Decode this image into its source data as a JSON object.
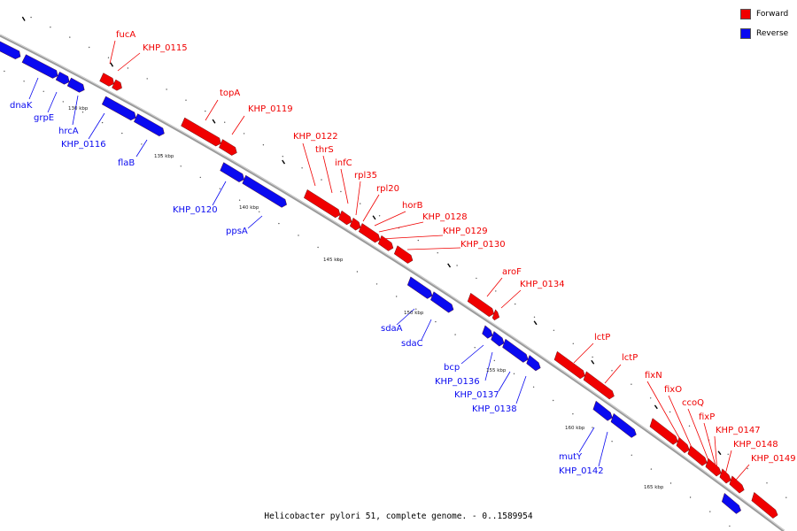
{
  "legend": {
    "forward": {
      "label": "Forward",
      "color": "#f00000"
    },
    "reverse": {
      "label": "Reverse",
      "color": "#0a0af0"
    }
  },
  "caption": "Helicobacter pylori 51, complete genome. - 0..1589954",
  "backbone_color": "#9a9a9a",
  "ticks": [
    "130 kbp",
    "135 kbp",
    "140 kbp",
    "145 kbp",
    "150 kbp",
    "155 kbp",
    "160 kbp",
    "165 kbp"
  ],
  "gene_labels": {
    "forward": [
      "fucA",
      "KHP_0115",
      "topA",
      "KHP_0119",
      "KHP_0122",
      "thrS",
      "infC",
      "rpl35",
      "rpl20",
      "horB",
      "KHP_0128",
      "KHP_0129",
      "KHP_0130",
      "aroF",
      "KHP_0134",
      "lctP",
      "lctP",
      "fixN",
      "fixO",
      "ccoQ",
      "fixP",
      "KHP_0147",
      "KHP_0148",
      "KHP_0149"
    ],
    "reverse": [
      "dnaK",
      "grpE",
      "hrcA",
      "KHP_0116",
      "flaB",
      "KHP_0120",
      "ppsA",
      "sdaA",
      "sdaC",
      "bcp",
      "KHP_0136",
      "KHP_0137",
      "KHP_0138",
      "mutY",
      "KHP_0142"
    ]
  }
}
